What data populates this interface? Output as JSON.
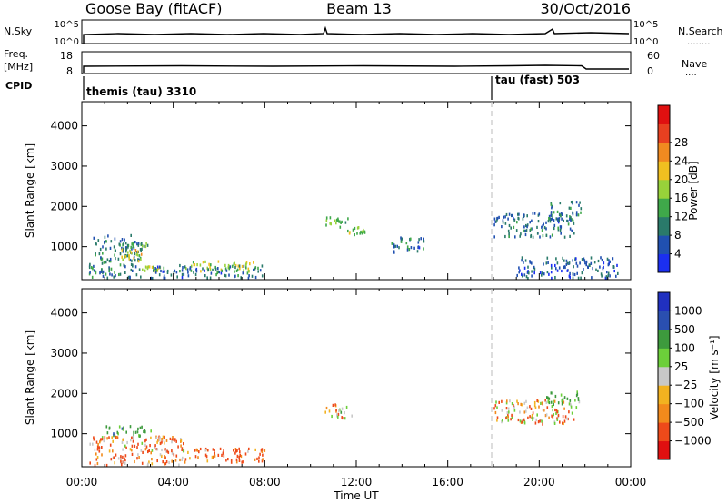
{
  "header": {
    "station": "Goose Bay (fitACF)",
    "beam": "Beam 13",
    "date": "30/Oct/2016"
  },
  "panels": {
    "nsky": {
      "label": "N.Sky",
      "ticks": [
        "10^5",
        "10^0"
      ],
      "right_label": "N.Search",
      "right_ticks": [
        "10^5",
        "10^0"
      ],
      "right_dots": "........"
    },
    "freq": {
      "label_top": "Freq.",
      "label_unit": "[MHz]",
      "ticks": [
        "18",
        "8"
      ],
      "right_label": "Nave",
      "right_ticks": [
        "60",
        "0"
      ],
      "right_dots": "...."
    },
    "cpid": {
      "label": "CPID",
      "modes": [
        {
          "name": "themis (tau) 3310",
          "start_hour": 0
        },
        {
          "name": "tau (fast) 503",
          "start_hour": 18
        }
      ]
    }
  },
  "colors": {
    "power": [
      "#1b2ff0",
      "#2050b0",
      "#2a7a6a",
      "#3fa84a",
      "#98d23a",
      "#f0c020",
      "#f08a20",
      "#e84020",
      "#e01010"
    ],
    "velocity": [
      "#e01010",
      "#ee4a1a",
      "#f28a1c",
      "#f2b220",
      "#c8c8c8",
      "#6ccf3a",
      "#3d9a3d",
      "#2a4fb0",
      "#2030c0"
    ],
    "frame": "#000000",
    "divider": "#bbbbbb"
  },
  "chart_data": [
    {
      "type": "heatmap",
      "title": "",
      "xlabel": "Time UT",
      "ylabel": "Slant Range [km]",
      "x_ticks": [
        "00:00",
        "04:00",
        "08:00",
        "12:00",
        "16:00",
        "20:00",
        "00:00"
      ],
      "xlim": [
        0,
        24
      ],
      "ylim": [
        180,
        4600
      ],
      "y_ticks": [
        "1000",
        "2000",
        "3000",
        "4000"
      ],
      "colorbar": {
        "label": "Power [dB]",
        "ticks": [
          "4",
          "8",
          "12",
          "16",
          "20",
          "24",
          "28"
        ],
        "range": [
          0,
          30
        ]
      },
      "echo_regions": [
        {
          "hours": [
            0.3,
            2.6
          ],
          "range_km": [
            180,
            1250
          ],
          "value": 8
        },
        {
          "hours": [
            1.6,
            2.9
          ],
          "range_km": [
            950,
            1050
          ],
          "value": 10
        },
        {
          "hours": [
            1.7,
            2.6
          ],
          "range_km": [
            600,
            900
          ],
          "value": 18
        },
        {
          "hours": [
            2.6,
            3.4
          ],
          "range_km": [
            350,
            480
          ],
          "value": 16
        },
        {
          "hours": [
            4.5,
            7.5
          ],
          "range_km": [
            350,
            600
          ],
          "value": 15
        },
        {
          "hours": [
            3.0,
            8.0
          ],
          "range_km": [
            180,
            500
          ],
          "value": 7
        },
        {
          "hours": [
            10.6,
            11.7
          ],
          "range_km": [
            1450,
            1700
          ],
          "value": 12
        },
        {
          "hours": [
            11.6,
            12.4
          ],
          "range_km": [
            1250,
            1450
          ],
          "value": 14
        },
        {
          "hours": [
            13.5,
            15.0
          ],
          "range_km": [
            800,
            1200
          ],
          "value": 7
        },
        {
          "hours": [
            18.0,
            21.5
          ],
          "range_km": [
            1200,
            1800
          ],
          "value": 7
        },
        {
          "hours": [
            20.3,
            21.8
          ],
          "range_km": [
            1600,
            2100
          ],
          "value": 8
        },
        {
          "hours": [
            19.0,
            23.5
          ],
          "range_km": [
            180,
            700
          ],
          "value": 6
        }
      ]
    },
    {
      "type": "heatmap",
      "title": "",
      "xlabel": "Time UT",
      "ylabel": "Slant Range [km]",
      "x_ticks": [
        "00:00",
        "04:00",
        "08:00",
        "12:00",
        "16:00",
        "20:00",
        "00:00"
      ],
      "xlim": [
        0,
        24
      ],
      "ylim": [
        180,
        4600
      ],
      "y_ticks": [
        "1000",
        "2000",
        "3000",
        "4000"
      ],
      "colorbar": {
        "label": "Velocity [m s⁻¹]",
        "ticks": [
          "1000",
          "500",
          "100",
          "25",
          "−25",
          "−100",
          "−500",
          "−1000"
        ]
      },
      "echo_regions": [
        {
          "hours": [
            1.0,
            3.0
          ],
          "range_km": [
            900,
            1150
          ],
          "value": 200
        },
        {
          "hours": [
            0.3,
            4.5
          ],
          "range_km": [
            180,
            900
          ],
          "value": -100
        },
        {
          "hours": [
            4.5,
            8.0
          ],
          "range_km": [
            250,
            600
          ],
          "value": -150
        },
        {
          "hours": [
            10.6,
            11.8
          ],
          "range_km": [
            1350,
            1700
          ],
          "value": 0
        },
        {
          "hours": [
            18.0,
            21.5
          ],
          "range_km": [
            1200,
            1800
          ],
          "value": -60
        },
        {
          "hours": [
            20.3,
            21.8
          ],
          "range_km": [
            1600,
            2000
          ],
          "value": 120
        }
      ]
    }
  ]
}
